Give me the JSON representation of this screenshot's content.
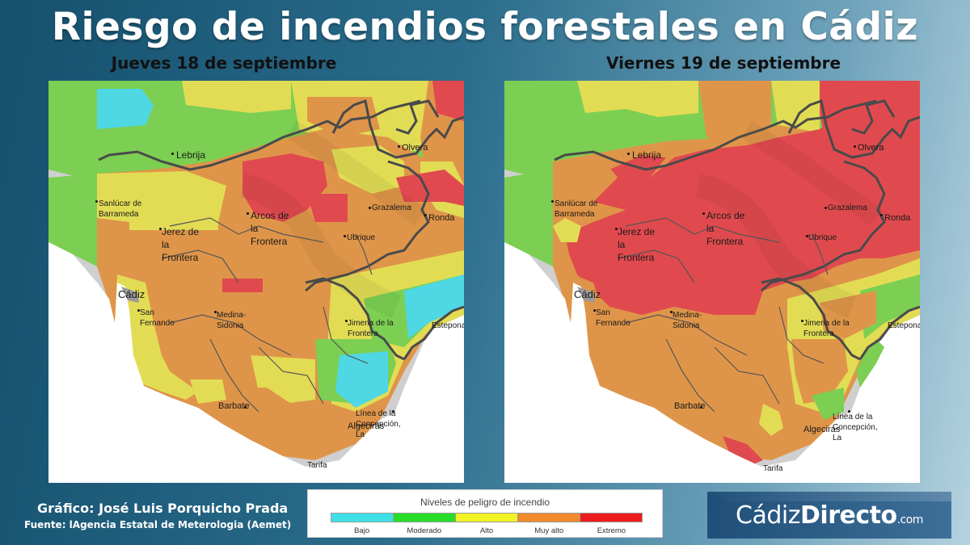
{
  "title": "Riesgo de incendios forestales en Cádiz",
  "maps": [
    {
      "date_label": "Jueves 18 de septiembre",
      "risk_summary": {
        "dominant_level": "Muy alto"
      }
    },
    {
      "date_label": "Viernes 19 de septiembre",
      "risk_summary": {
        "dominant_level": "Extremo"
      }
    }
  ],
  "towns": {
    "lebrija": "Lebrija",
    "olvera": "Olvera",
    "sanlucar": "Sanlúcar de\nBarrameda",
    "arcos": "Arcos de\nla\nFrontera",
    "grazalema": "Grazalema",
    "ronda": "Ronda",
    "jerez": "Jerez de\nla\nFrontera",
    "ubrique": "Ubrique",
    "cadiz": "Cádiz",
    "san_fernando": "San\nFernando",
    "medina": "Medina-\nSidonia",
    "jimena": "Jimena de la\nFrontera",
    "estepona": "Estepona",
    "barbate": "Barbate",
    "linea": "Línea de la\nConcepción,\nLa",
    "algeciras": "Algeciras",
    "tarifa": "Tarifa"
  },
  "legend": {
    "title": "Niveles de peligro de incendio",
    "levels": [
      {
        "label": "Bajo",
        "color": "#3ee0e8"
      },
      {
        "label": "Moderado",
        "color": "#27dd2a"
      },
      {
        "label": "Alto",
        "color": "#f2f225"
      },
      {
        "label": "Muy alto",
        "color": "#f08a2b"
      },
      {
        "label": "Extremo",
        "color": "#ee1d1d"
      }
    ]
  },
  "credit": "Gráfico: José Luis Porquicho Prada",
  "source": "Fuente:  lAgencia Estatal de Meterologia (Aemet)",
  "logo": {
    "part1": "Cádiz",
    "part2": "Directo",
    "part3": ".com"
  },
  "colors": {
    "land_gray": "#cfcfcf",
    "sea_white": "#ffffff",
    "bajo": "#4fd7e3",
    "moderado": "#7ccf52",
    "alto": "#e2dc55",
    "muy_alto": "#df9549",
    "extremo": "#e04a4e"
  }
}
